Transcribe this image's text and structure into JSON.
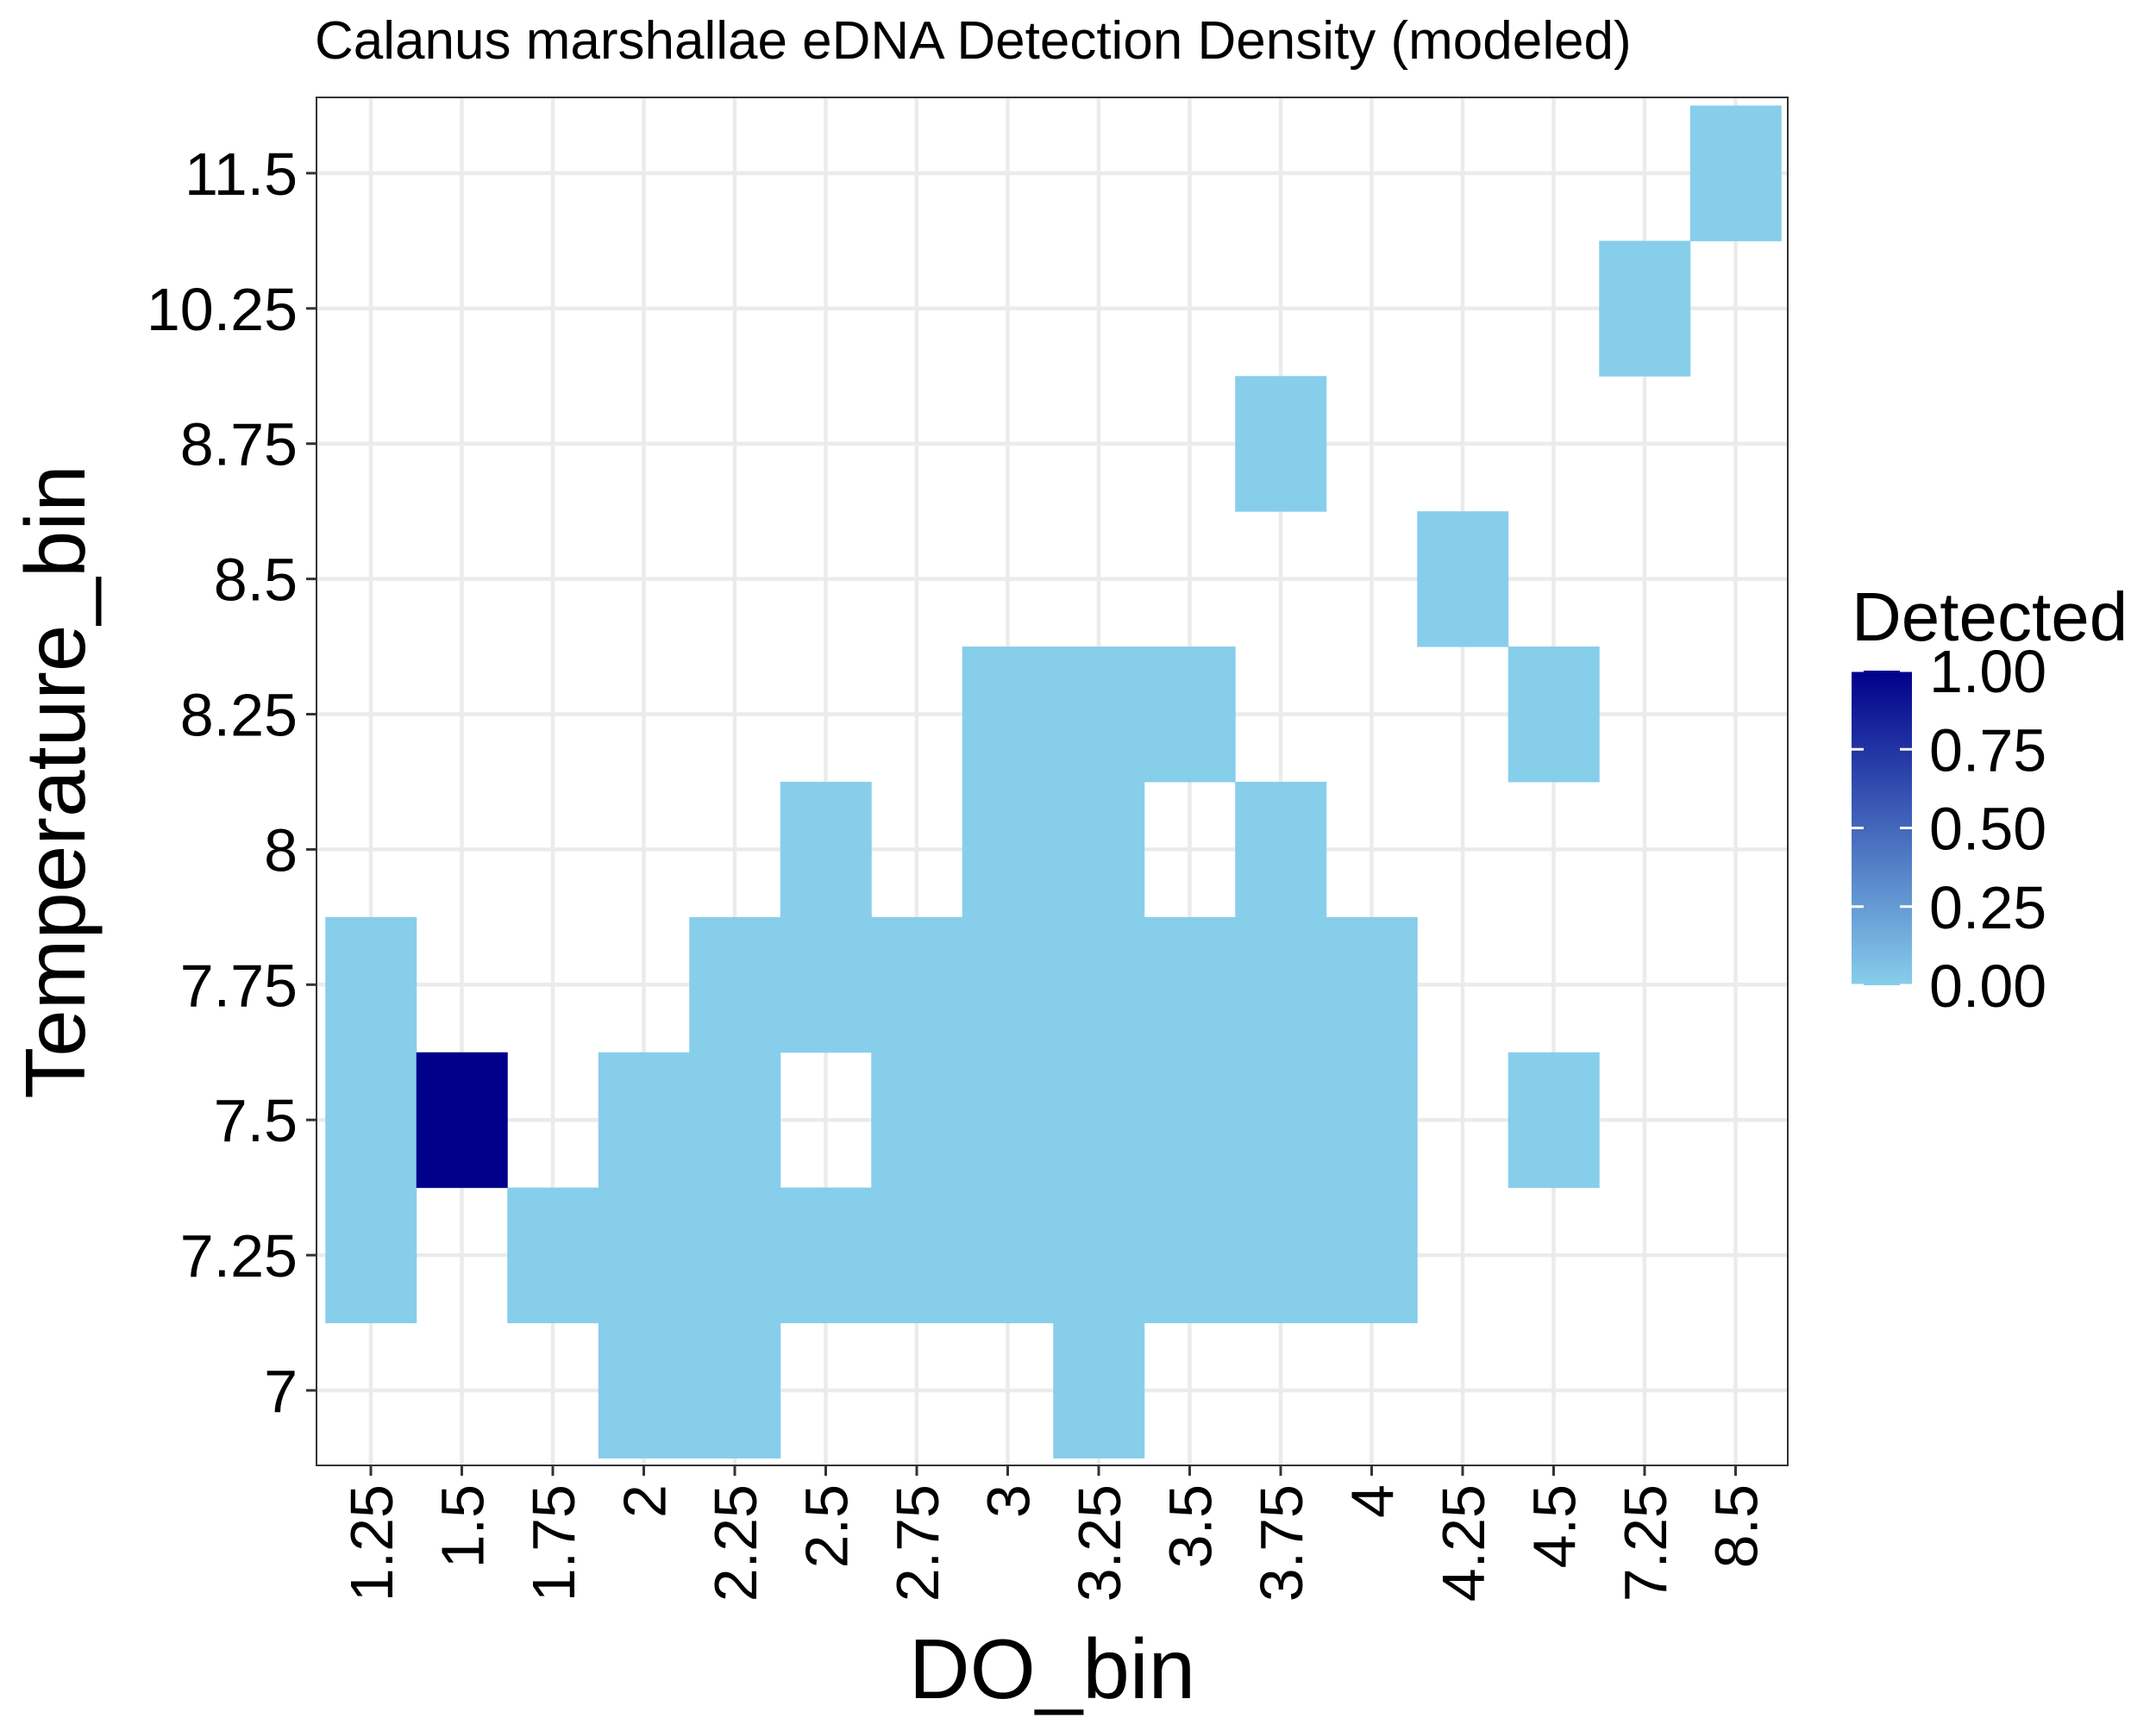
{
  "chart_data": {
    "type": "heatmap",
    "title": "Calanus marshallae eDNA Detection Density (modeled)",
    "xlabel": "DO_bin",
    "ylabel": "Temperature_bin",
    "x_categories": [
      "1.25",
      "1.5",
      "1.75",
      "2",
      "2.25",
      "2.5",
      "2.75",
      "3",
      "3.25",
      "3.5",
      "3.75",
      "4",
      "4.25",
      "4.5",
      "7.25",
      "8.5"
    ],
    "y_categories": [
      "7",
      "7.25",
      "7.5",
      "7.75",
      "8",
      "8.25",
      "8.5",
      "8.75",
      "10.25",
      "11.5"
    ],
    "cells": [
      {
        "x": "1.25",
        "y": "7.25",
        "value": 0
      },
      {
        "x": "1.25",
        "y": "7.5",
        "value": 0
      },
      {
        "x": "1.25",
        "y": "7.75",
        "value": 0
      },
      {
        "x": "1.5",
        "y": "7.5",
        "value": 1
      },
      {
        "x": "1.75",
        "y": "7.25",
        "value": 0
      },
      {
        "x": "2",
        "y": "7",
        "value": 0
      },
      {
        "x": "2",
        "y": "7.25",
        "value": 0
      },
      {
        "x": "2",
        "y": "7.5",
        "value": 0
      },
      {
        "x": "2.25",
        "y": "7",
        "value": 0
      },
      {
        "x": "2.25",
        "y": "7.25",
        "value": 0
      },
      {
        "x": "2.25",
        "y": "7.5",
        "value": 0
      },
      {
        "x": "2.25",
        "y": "7.75",
        "value": 0
      },
      {
        "x": "2.5",
        "y": "7.25",
        "value": 0
      },
      {
        "x": "2.5",
        "y": "7.75",
        "value": 0
      },
      {
        "x": "2.5",
        "y": "8",
        "value": 0
      },
      {
        "x": "2.75",
        "y": "7.25",
        "value": 0
      },
      {
        "x": "2.75",
        "y": "7.5",
        "value": 0
      },
      {
        "x": "2.75",
        "y": "7.75",
        "value": 0
      },
      {
        "x": "3",
        "y": "7.25",
        "value": 0
      },
      {
        "x": "3",
        "y": "7.5",
        "value": 0
      },
      {
        "x": "3",
        "y": "7.75",
        "value": 0
      },
      {
        "x": "3",
        "y": "8",
        "value": 0
      },
      {
        "x": "3",
        "y": "8.25",
        "value": 0
      },
      {
        "x": "3.25",
        "y": "7",
        "value": 0
      },
      {
        "x": "3.25",
        "y": "7.25",
        "value": 0
      },
      {
        "x": "3.25",
        "y": "7.5",
        "value": 0
      },
      {
        "x": "3.25",
        "y": "7.75",
        "value": 0
      },
      {
        "x": "3.25",
        "y": "8",
        "value": 0
      },
      {
        "x": "3.25",
        "y": "8.25",
        "value": 0
      },
      {
        "x": "3.5",
        "y": "7.25",
        "value": 0
      },
      {
        "x": "3.5",
        "y": "7.5",
        "value": 0
      },
      {
        "x": "3.5",
        "y": "7.75",
        "value": 0
      },
      {
        "x": "3.5",
        "y": "8.25",
        "value": 0
      },
      {
        "x": "3.75",
        "y": "7.25",
        "value": 0
      },
      {
        "x": "3.75",
        "y": "7.5",
        "value": 0
      },
      {
        "x": "3.75",
        "y": "7.75",
        "value": 0
      },
      {
        "x": "3.75",
        "y": "8",
        "value": 0
      },
      {
        "x": "3.75",
        "y": "8.75",
        "value": 0
      },
      {
        "x": "4",
        "y": "7.25",
        "value": 0
      },
      {
        "x": "4",
        "y": "7.5",
        "value": 0
      },
      {
        "x": "4",
        "y": "7.75",
        "value": 0
      },
      {
        "x": "4.25",
        "y": "8.5",
        "value": 0
      },
      {
        "x": "4.5",
        "y": "7.5",
        "value": 0
      },
      {
        "x": "4.5",
        "y": "8.25",
        "value": 0
      },
      {
        "x": "7.25",
        "y": "10.25",
        "value": 0
      },
      {
        "x": "8.5",
        "y": "11.5",
        "value": 0
      }
    ],
    "legend": {
      "title": "Detected",
      "position": "right",
      "ticks": [
        "0.00",
        "0.25",
        "0.50",
        "0.75",
        "1.00"
      ],
      "tick_values": [
        0,
        0.25,
        0.5,
        0.75,
        1
      ],
      "range": [
        0,
        1
      ],
      "low_color": "#87CEEB",
      "high_color": "#00008B"
    },
    "grid": true,
    "panel_border": true,
    "background_color": "#FFFFFF",
    "grid_color": "#EBEBEB"
  }
}
